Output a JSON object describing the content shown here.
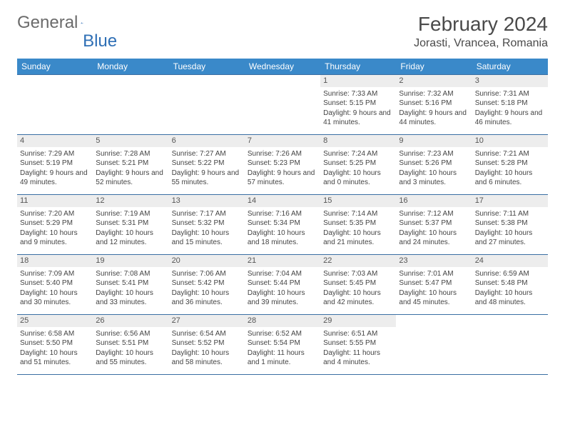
{
  "brand": {
    "part1": "General",
    "part2": "Blue",
    "text_color": "#6b6b6b",
    "accent_color": "#2e6fb5"
  },
  "title": "February 2024",
  "location": "Jorasti, Vrancea, Romania",
  "header_bg": "#3a89c9",
  "border_color": "#3a6fa3",
  "daynum_bg": "#ededed",
  "day_headers": [
    "Sunday",
    "Monday",
    "Tuesday",
    "Wednesday",
    "Thursday",
    "Friday",
    "Saturday"
  ],
  "weeks": [
    [
      null,
      null,
      null,
      null,
      {
        "n": "1",
        "sr": "7:33 AM",
        "ss": "5:15 PM",
        "dl": "9 hours and 41 minutes."
      },
      {
        "n": "2",
        "sr": "7:32 AM",
        "ss": "5:16 PM",
        "dl": "9 hours and 44 minutes."
      },
      {
        "n": "3",
        "sr": "7:31 AM",
        "ss": "5:18 PM",
        "dl": "9 hours and 46 minutes."
      }
    ],
    [
      {
        "n": "4",
        "sr": "7:29 AM",
        "ss": "5:19 PM",
        "dl": "9 hours and 49 minutes."
      },
      {
        "n": "5",
        "sr": "7:28 AM",
        "ss": "5:21 PM",
        "dl": "9 hours and 52 minutes."
      },
      {
        "n": "6",
        "sr": "7:27 AM",
        "ss": "5:22 PM",
        "dl": "9 hours and 55 minutes."
      },
      {
        "n": "7",
        "sr": "7:26 AM",
        "ss": "5:23 PM",
        "dl": "9 hours and 57 minutes."
      },
      {
        "n": "8",
        "sr": "7:24 AM",
        "ss": "5:25 PM",
        "dl": "10 hours and 0 minutes."
      },
      {
        "n": "9",
        "sr": "7:23 AM",
        "ss": "5:26 PM",
        "dl": "10 hours and 3 minutes."
      },
      {
        "n": "10",
        "sr": "7:21 AM",
        "ss": "5:28 PM",
        "dl": "10 hours and 6 minutes."
      }
    ],
    [
      {
        "n": "11",
        "sr": "7:20 AM",
        "ss": "5:29 PM",
        "dl": "10 hours and 9 minutes."
      },
      {
        "n": "12",
        "sr": "7:19 AM",
        "ss": "5:31 PM",
        "dl": "10 hours and 12 minutes."
      },
      {
        "n": "13",
        "sr": "7:17 AM",
        "ss": "5:32 PM",
        "dl": "10 hours and 15 minutes."
      },
      {
        "n": "14",
        "sr": "7:16 AM",
        "ss": "5:34 PM",
        "dl": "10 hours and 18 minutes."
      },
      {
        "n": "15",
        "sr": "7:14 AM",
        "ss": "5:35 PM",
        "dl": "10 hours and 21 minutes."
      },
      {
        "n": "16",
        "sr": "7:12 AM",
        "ss": "5:37 PM",
        "dl": "10 hours and 24 minutes."
      },
      {
        "n": "17",
        "sr": "7:11 AM",
        "ss": "5:38 PM",
        "dl": "10 hours and 27 minutes."
      }
    ],
    [
      {
        "n": "18",
        "sr": "7:09 AM",
        "ss": "5:40 PM",
        "dl": "10 hours and 30 minutes."
      },
      {
        "n": "19",
        "sr": "7:08 AM",
        "ss": "5:41 PM",
        "dl": "10 hours and 33 minutes."
      },
      {
        "n": "20",
        "sr": "7:06 AM",
        "ss": "5:42 PM",
        "dl": "10 hours and 36 minutes."
      },
      {
        "n": "21",
        "sr": "7:04 AM",
        "ss": "5:44 PM",
        "dl": "10 hours and 39 minutes."
      },
      {
        "n": "22",
        "sr": "7:03 AM",
        "ss": "5:45 PM",
        "dl": "10 hours and 42 minutes."
      },
      {
        "n": "23",
        "sr": "7:01 AM",
        "ss": "5:47 PM",
        "dl": "10 hours and 45 minutes."
      },
      {
        "n": "24",
        "sr": "6:59 AM",
        "ss": "5:48 PM",
        "dl": "10 hours and 48 minutes."
      }
    ],
    [
      {
        "n": "25",
        "sr": "6:58 AM",
        "ss": "5:50 PM",
        "dl": "10 hours and 51 minutes."
      },
      {
        "n": "26",
        "sr": "6:56 AM",
        "ss": "5:51 PM",
        "dl": "10 hours and 55 minutes."
      },
      {
        "n": "27",
        "sr": "6:54 AM",
        "ss": "5:52 PM",
        "dl": "10 hours and 58 minutes."
      },
      {
        "n": "28",
        "sr": "6:52 AM",
        "ss": "5:54 PM",
        "dl": "11 hours and 1 minute."
      },
      {
        "n": "29",
        "sr": "6:51 AM",
        "ss": "5:55 PM",
        "dl": "11 hours and 4 minutes."
      },
      null,
      null
    ]
  ],
  "labels": {
    "sunrise": "Sunrise:",
    "sunset": "Sunset:",
    "daylight": "Daylight:"
  }
}
